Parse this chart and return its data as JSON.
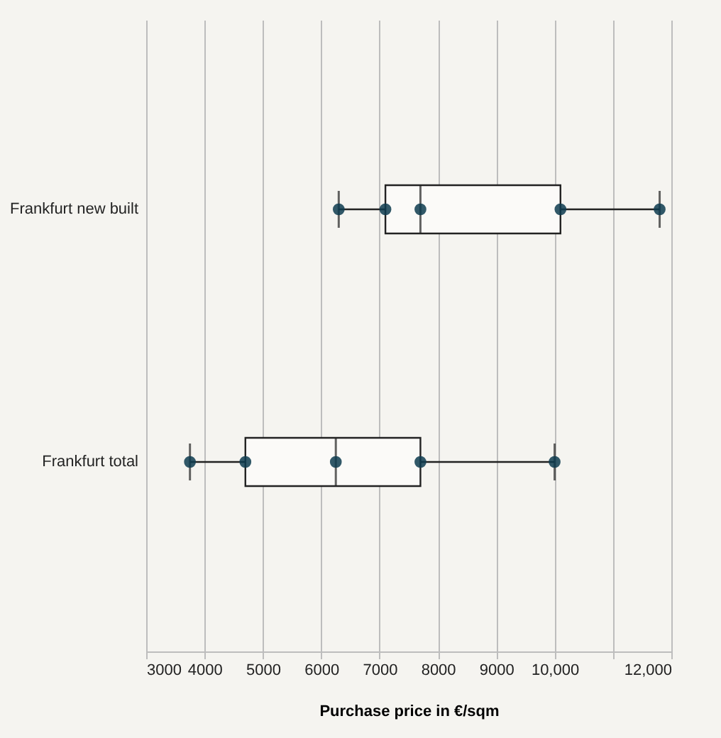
{
  "chart_data": {
    "type": "box",
    "orientation": "horizontal",
    "xlabel": "Purchase price in €/sqm",
    "categories": [
      "Frankfurt new built",
      "Frankfurt total"
    ],
    "boxes": [
      {
        "low": 6300,
        "q1": 7100,
        "median": 7700,
        "q3": 10100,
        "high": 11800
      },
      {
        "low": 3750,
        "q1": 4700,
        "median": 6250,
        "q3": 7700,
        "high": 10000
      }
    ],
    "series": [
      {
        "type": "scatter",
        "color": "#0d3b4f",
        "x": [
          "Frankfurt new built",
          "Frankfurt new built",
          "Frankfurt new built",
          "Frankfurt new built",
          "Frankfurt new built",
          "Frankfurt total",
          "Frankfurt total",
          "Frankfurt total",
          "Frankfurt total",
          "Frankfurt total"
        ],
        "values": [
          6300,
          7100,
          7700,
          10100,
          11800,
          3750,
          4700,
          6250,
          7700,
          10000
        ]
      }
    ],
    "xlim": [
      3000,
      12000
    ],
    "xticks": [
      3000,
      4000,
      5000,
      6000,
      7000,
      8000,
      9000,
      {
        "value": 10000,
        "label": "10,000"
      },
      {
        "value": 11000,
        "label": null
      },
      {
        "value": 12000,
        "label": "12,000"
      }
    ],
    "grid": "x"
  }
}
